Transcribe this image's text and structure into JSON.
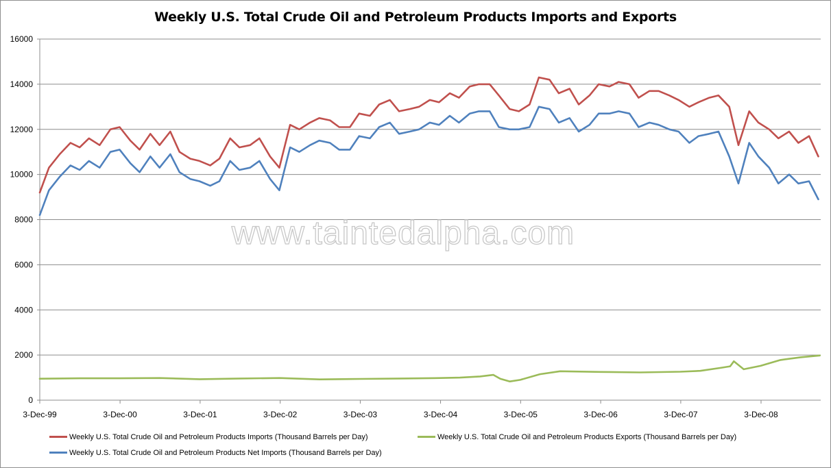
{
  "chart_data": {
    "type": "line",
    "title": "Weekly U.S. Total Crude Oil and Petroleum Products Imports and Exports",
    "xlabel": "",
    "ylabel": "",
    "ylim": [
      0,
      16000
    ],
    "yticks": [
      0,
      2000,
      4000,
      6000,
      8000,
      10000,
      12000,
      14000,
      16000
    ],
    "xlim": [
      "1999-12-03",
      "2009-09-01"
    ],
    "xticks": [
      "3-Dec-99",
      "3-Dec-00",
      "3-Dec-01",
      "3-Dec-02",
      "3-Dec-03",
      "3-Dec-04",
      "3-Dec-05",
      "3-Dec-06",
      "3-Dec-07",
      "3-Dec-08"
    ],
    "grid": "horizontal",
    "legend_position": "bottom",
    "watermark": "www.taintedalpha.com",
    "series": [
      {
        "name": "Weekly U.S. Total Crude Oil and Petroleum Products Imports  (Thousand  Barrels per Day)",
        "color": "#c0504d",
        "x": [
          "1999-12-03",
          "2000-01-14",
          "2000-03-03",
          "2000-04-21",
          "2000-06-02",
          "2000-07-14",
          "2000-09-01",
          "2000-10-20",
          "2000-12-01",
          "2001-01-19",
          "2001-03-02",
          "2001-04-20",
          "2001-06-01",
          "2001-07-20",
          "2001-08-31",
          "2001-10-19",
          "2001-11-30",
          "2002-01-18",
          "2002-03-01",
          "2002-04-19",
          "2002-05-31",
          "2002-07-19",
          "2002-08-30",
          "2002-10-18",
          "2002-11-29",
          "2003-01-17",
          "2003-02-28",
          "2003-04-18",
          "2003-05-30",
          "2003-07-18",
          "2003-08-29",
          "2003-10-17",
          "2003-11-28",
          "2004-01-16",
          "2004-02-27",
          "2004-04-16",
          "2004-05-28",
          "2004-07-16",
          "2004-08-27",
          "2004-10-15",
          "2004-11-26",
          "2005-01-14",
          "2005-02-25",
          "2005-04-15",
          "2005-05-27",
          "2005-07-15",
          "2005-08-26",
          "2005-10-14",
          "2005-11-25",
          "2006-01-13",
          "2006-02-24",
          "2006-04-14",
          "2006-05-26",
          "2006-07-14",
          "2006-08-25",
          "2006-10-13",
          "2006-11-24",
          "2007-01-12",
          "2007-02-23",
          "2007-04-13",
          "2007-05-25",
          "2007-07-13",
          "2007-08-24",
          "2007-10-12",
          "2007-11-23",
          "2008-01-11",
          "2008-02-22",
          "2008-04-11",
          "2008-05-23",
          "2008-07-11",
          "2008-08-22",
          "2008-10-10",
          "2008-11-21",
          "2009-01-09",
          "2009-02-20",
          "2009-04-10",
          "2009-05-22",
          "2009-07-10",
          "2009-08-21"
        ],
        "values": [
          9200,
          10300,
          10900,
          11400,
          11200,
          11600,
          11300,
          12000,
          12100,
          11500,
          11100,
          11800,
          11300,
          11900,
          11000,
          10700,
          10600,
          10400,
          10700,
          11600,
          11200,
          11300,
          11600,
          10800,
          10300,
          12200,
          12000,
          12300,
          12500,
          12400,
          12100,
          12100,
          12700,
          12600,
          13100,
          13300,
          12800,
          12900,
          13000,
          13300,
          13200,
          13600,
          13400,
          13900,
          14000,
          14000,
          13500,
          12900,
          12800,
          13100,
          14300,
          14200,
          13600,
          13800,
          13100,
          13500,
          14000,
          13900,
          14100,
          14000,
          13400,
          13700,
          13700,
          13500,
          13300,
          13000,
          13200,
          13400,
          13500,
          13000,
          11300,
          12800,
          12300,
          12000,
          11600,
          11900,
          11400,
          11700,
          10800
        ]
      },
      {
        "name": "Weekly U.S. Total Crude Oil and Petroleum Products Exports  (Thousand  Barrels per Day)",
        "color": "#9bbb59",
        "x": [
          "1999-12-03",
          "2000-06-01",
          "2000-12-01",
          "2001-06-01",
          "2001-12-01",
          "2002-06-01",
          "2002-12-01",
          "2003-06-01",
          "2003-12-01",
          "2004-06-01",
          "2004-12-01",
          "2005-03-01",
          "2005-06-01",
          "2005-08-01",
          "2005-09-01",
          "2005-10-15",
          "2005-12-01",
          "2006-03-01",
          "2006-06-01",
          "2006-12-01",
          "2007-06-01",
          "2007-12-01",
          "2008-03-01",
          "2008-06-01",
          "2008-07-15",
          "2008-08-01",
          "2008-09-15",
          "2008-12-01",
          "2009-03-01",
          "2009-06-01",
          "2009-08-28"
        ],
        "values": [
          950,
          970,
          970,
          980,
          930,
          960,
          980,
          920,
          940,
          960,
          980,
          1000,
          1050,
          1120,
          950,
          830,
          900,
          1150,
          1280,
          1250,
          1230,
          1260,
          1300,
          1430,
          1500,
          1720,
          1370,
          1520,
          1780,
          1900,
          1980
        ]
      },
      {
        "name": "Weekly U.S. Total Crude Oil and Petroleum Products Net Imports  (Thousand Barrels per Day)",
        "color": "#4f81bd",
        "x": [
          "1999-12-03",
          "2000-01-14",
          "2000-03-03",
          "2000-04-21",
          "2000-06-02",
          "2000-07-14",
          "2000-09-01",
          "2000-10-20",
          "2000-12-01",
          "2001-01-19",
          "2001-03-02",
          "2001-04-20",
          "2001-06-01",
          "2001-07-20",
          "2001-08-31",
          "2001-10-19",
          "2001-11-30",
          "2002-01-18",
          "2002-03-01",
          "2002-04-19",
          "2002-05-31",
          "2002-07-19",
          "2002-08-30",
          "2002-10-18",
          "2002-11-29",
          "2003-01-17",
          "2003-02-28",
          "2003-04-18",
          "2003-05-30",
          "2003-07-18",
          "2003-08-29",
          "2003-10-17",
          "2003-11-28",
          "2004-01-16",
          "2004-02-27",
          "2004-04-16",
          "2004-05-28",
          "2004-07-16",
          "2004-08-27",
          "2004-10-15",
          "2004-11-26",
          "2005-01-14",
          "2005-02-25",
          "2005-04-15",
          "2005-05-27",
          "2005-07-15",
          "2005-08-26",
          "2005-10-14",
          "2005-11-25",
          "2006-01-13",
          "2006-02-24",
          "2006-04-14",
          "2006-05-26",
          "2006-07-14",
          "2006-08-25",
          "2006-10-13",
          "2006-11-24",
          "2007-01-12",
          "2007-02-23",
          "2007-04-13",
          "2007-05-25",
          "2007-07-13",
          "2007-08-24",
          "2007-10-12",
          "2007-11-23",
          "2008-01-11",
          "2008-02-22",
          "2008-04-11",
          "2008-05-23",
          "2008-07-11",
          "2008-08-22",
          "2008-10-10",
          "2008-11-21",
          "2009-01-09",
          "2009-02-20",
          "2009-04-10",
          "2009-05-22",
          "2009-07-10",
          "2009-08-21"
        ],
        "values": [
          8200,
          9300,
          9900,
          10400,
          10200,
          10600,
          10300,
          11000,
          11100,
          10500,
          10100,
          10800,
          10300,
          10900,
          10100,
          9800,
          9700,
          9500,
          9700,
          10600,
          10200,
          10300,
          10600,
          9800,
          9300,
          11200,
          11000,
          11300,
          11500,
          11400,
          11100,
          11100,
          11700,
          11600,
          12100,
          12300,
          11800,
          11900,
          12000,
          12300,
          12200,
          12600,
          12300,
          12700,
          12800,
          12800,
          12100,
          12000,
          12000,
          12100,
          13000,
          12900,
          12300,
          12500,
          11900,
          12200,
          12700,
          12700,
          12800,
          12700,
          12100,
          12300,
          12200,
          12000,
          11900,
          11400,
          11700,
          11800,
          11900,
          10800,
          9600,
          11400,
          10800,
          10300,
          9600,
          10000,
          9600,
          9700,
          8900
        ]
      }
    ]
  }
}
